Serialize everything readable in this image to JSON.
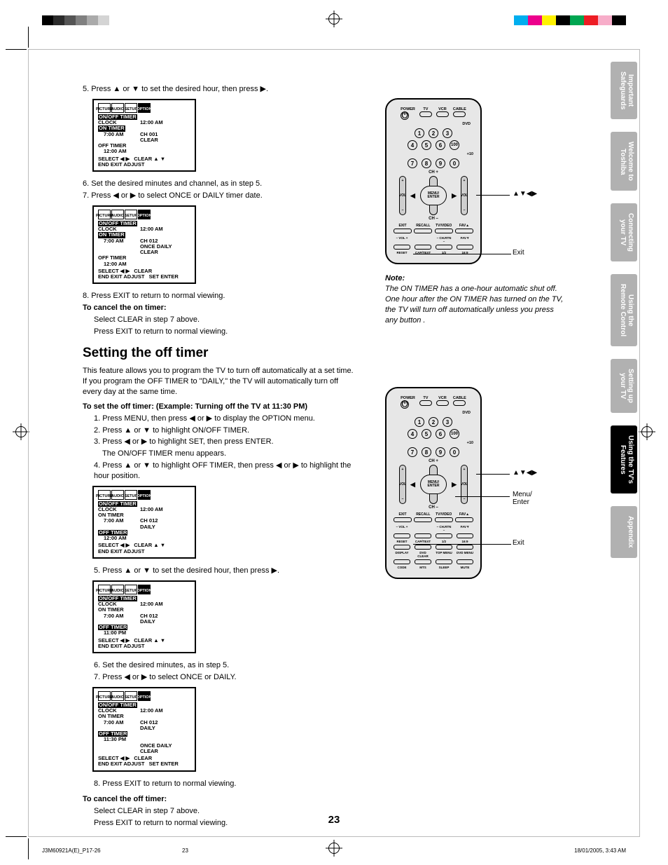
{
  "registration_colors": [
    "#000",
    "#2b2b2b",
    "#555",
    "#808080",
    "#aaa",
    "#d4d4d4",
    "#fff",
    "#fff",
    "#fff",
    "#fff",
    "#fff",
    "#fff",
    "#fff",
    "#fff",
    "#fff",
    "#fff",
    "#fff",
    "#fff",
    "#fff",
    "#00aeef",
    "#ec008c",
    "#fff200",
    "#00a651",
    "#ed1c24",
    "#f7adc9",
    "#000"
  ],
  "steps_top": {
    "s5": "5. Press ▲ or ▼ to set the desired hour, then press ▶.",
    "s6": "6. Set the desired minutes and channel, as in step 5.",
    "s7": "7. Press ◀ or ▶ to select ONCE or DAILY timer date.",
    "s8": "8. Press EXIT to return to normal viewing."
  },
  "cancel_on": {
    "head": "To cancel the on timer:",
    "l1": "Select CLEAR in step 7 above.",
    "l2": "Press EXIT to return to normal viewing."
  },
  "section_title": "Setting the off timer",
  "section_intro": "This feature allows you to program the TV to turn off automatically at a set time. If you program the OFF TIMER to \"DAILY,\" the TV will automatically turn off every day at the same time.",
  "off_head": "To set the off timer: (Example: Turning off the TV at 11:30 PM)",
  "off_steps": {
    "s1": "1. Press MENU, then press ◀ or ▶ to display the OPTION menu.",
    "s2": "2. Press ▲ or ▼ to highlight ON/OFF TIMER.",
    "s3": "3. Press ◀ or ▶ to highlight SET, then press ENTER.",
    "s3b": "The ON/OFF TIMER menu appears.",
    "s4": "4. Press ▲ or ▼ to highlight OFF TIMER, then press ◀ or ▶ to highlight the hour position.",
    "s5": "5. Press ▲ or ▼ to set the desired hour, then press ▶.",
    "s6": "6. Set the desired minutes, as in step 5.",
    "s7": "7. Press ◀ or ▶ to select ONCE or DAILY.",
    "s8": "8. Press EXIT to return to normal viewing."
  },
  "cancel_off": {
    "head": "To cancel the off timer:",
    "l1": "Select CLEAR in step 7 above.",
    "l2": "Press EXIT to return to normal viewing."
  },
  "osd_tabs": [
    "PICTURE",
    "AUDIO",
    "SETUP",
    "OPTION"
  ],
  "osd1": {
    "head": "ON/OFF TIMER",
    "clock": "CLOCK",
    "clock_v": "12:00 AM",
    "on": "ON TIMER",
    "on_t": "7:00 AM",
    "on_ch": "CH 001",
    "on_c": "CLEAR",
    "off": "OFF TIMER",
    "off_t": "12:00 AM",
    "foot_l": "SELECT   ◀ ▶",
    "foot_r": "CLEAR   ▲ ▼",
    "foot_b": "END      EXIT   ADJUST"
  },
  "osd2": {
    "on_t": "7:00 AM",
    "on_ch": "CH 012",
    "on_row": "ONCE DAILY CLEAR",
    "off_t": "12:00 AM",
    "foot_r": "CLEAR",
    "foot_b2": "SET          ENTER"
  },
  "osd3": {
    "off": "OFF TIMER",
    "off_t": "12:00 AM",
    "daily": "DAILY"
  },
  "osd4": {
    "off_t": "11:00 PM"
  },
  "osd5": {
    "off_t": "11:30 PM",
    "row": "ONCE DAILY CLEAR"
  },
  "remote": {
    "top_labels": [
      "POWER",
      "TV",
      "VCR",
      "CABLE"
    ],
    "dvd": "DVD",
    "plus10": "+10",
    "nums": [
      "1",
      "2",
      "3",
      "4",
      "5",
      "6",
      "7",
      "8",
      "9",
      "0"
    ],
    "hundred": "100",
    "ch_plus": "CH +",
    "ch_minus": "CH –",
    "vol": "VOL",
    "menu": "MENU/\nENTER",
    "fn_row": [
      "EXIT",
      "RECALL",
      "TV/VIDEO",
      "FAV▲"
    ],
    "row2_lbl": [
      "– VOL +",
      "– CH.RTN –",
      "FAV▼"
    ],
    "row3_lbl": [
      "RESET",
      "CAP/TEXT",
      "1/2",
      "16:9"
    ],
    "row4_lbl": [
      "DISPLAY",
      "DVD CLEAR",
      "TOP MENU",
      "DVD MENU"
    ],
    "row5_lbl": [
      "CODE",
      "MTS",
      "SLEEP",
      "MUTE"
    ]
  },
  "callouts": {
    "arrows": "▲▼◀▶",
    "exit": "Exit",
    "menu": "Menu/\nEnter"
  },
  "note_head": "Note:",
  "note_body": "The ON TIMER has a one-hour automatic shut off. One hour after the ON TIMER has turned on the TV, the TV will turn off automatically unless you press any button .",
  "side_tabs": [
    {
      "label": "Important\nSafeguards",
      "active": false
    },
    {
      "label": "Welcome to\nToshiba",
      "active": false
    },
    {
      "label": "Connecting\nyour TV",
      "active": false
    },
    {
      "label": "Using the\nRemote Control",
      "active": false
    },
    {
      "label": "Setting up\nyour TV",
      "active": false
    },
    {
      "label": "Using the TV's\nFeatures",
      "active": true
    },
    {
      "label": "Appendix",
      "active": false
    }
  ],
  "page_number": "23",
  "footer": {
    "left": "J3M60921A(E)_P17-26",
    "mid": "23",
    "right": "18/01/2005, 3:43 AM"
  }
}
